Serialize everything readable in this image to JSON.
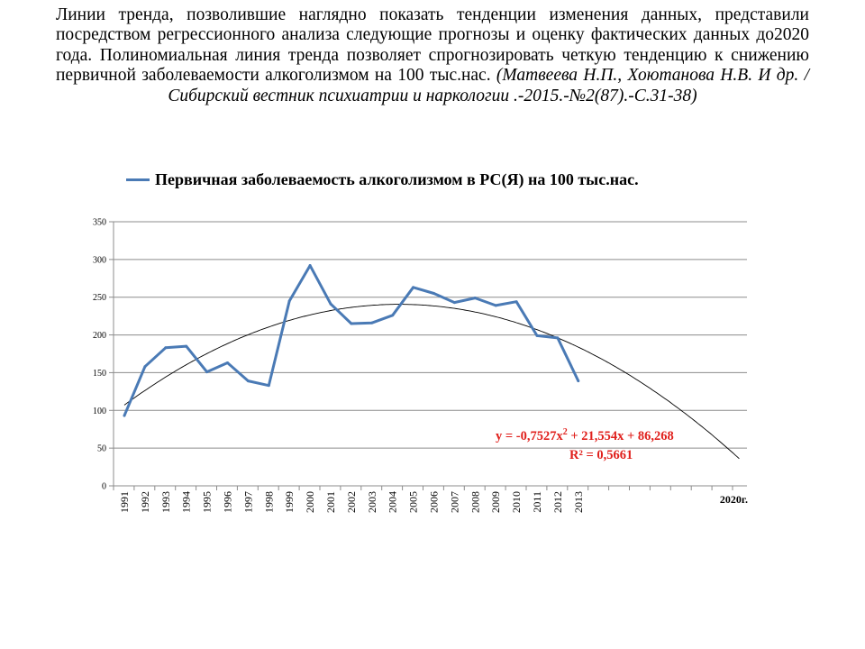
{
  "intro": {
    "text": "Линии тренда, позволившие наглядно показать тенденции изменения данных, представили посредством регрессионного анализа следующие прогнозы и оценку фактических данных до2020 года. Полиномиальная линия тренда позволяет спрогнозировать четкую тенденцию к снижению первичной заболеваемости алкоголизмом на 100 тыс.нас. ",
    "citation": "(Матвеева Н.П., Хоютанова Н.В. И др. /Сибирский вестник психиатрии и наркологии .-2015.-№2(87).-С.31-38)"
  },
  "colors": {
    "series": "#4a7ab5",
    "trend": "#000000",
    "equation": "#e0201c"
  },
  "chart_data": {
    "type": "line",
    "series": [
      {
        "name": "Первичная заболеваемость алкоголизмом в РС(Я) на 100 тыс.нас.",
        "x": [
          "1991",
          "1992",
          "1993",
          "1994",
          "1995",
          "1996",
          "1997",
          "1998",
          "1999",
          "2000",
          "2001",
          "2002",
          "2003",
          "2004",
          "2005",
          "2006",
          "2007",
          "2008",
          "2009",
          "2010",
          "2011",
          "2012",
          "2013"
        ],
        "values": [
          93,
          158,
          183,
          185,
          151,
          163,
          139,
          133,
          245,
          292,
          241,
          215,
          216,
          226,
          263,
          255,
          243,
          249,
          239,
          244,
          199,
          196,
          139
        ]
      }
    ],
    "trendline": {
      "type": "polynomial",
      "a": -0.7527,
      "b": 21.554,
      "c": 86.268,
      "x_from": 1,
      "x_to": 30.8
    },
    "x_tick_labels": [
      "1991",
      "1992",
      "1993",
      "1994",
      "1995",
      "1996",
      "1997",
      "1998",
      "1999",
      "2000",
      "2001",
      "2002",
      "2003",
      "2004",
      "2005",
      "2006",
      "2007",
      "2008",
      "2009",
      "2010",
      "2011",
      "2012",
      "2013"
    ],
    "x_end_label": "2020г.",
    "ylim": [
      0,
      350
    ],
    "y_ticks": [
      0,
      50,
      100,
      150,
      200,
      250,
      300,
      350
    ],
    "grid": true,
    "legend": "top",
    "annotations": [
      "y = -0,7527x",
      "2",
      " + 21,554x + 86,268",
      "R² = 0,5661"
    ]
  }
}
